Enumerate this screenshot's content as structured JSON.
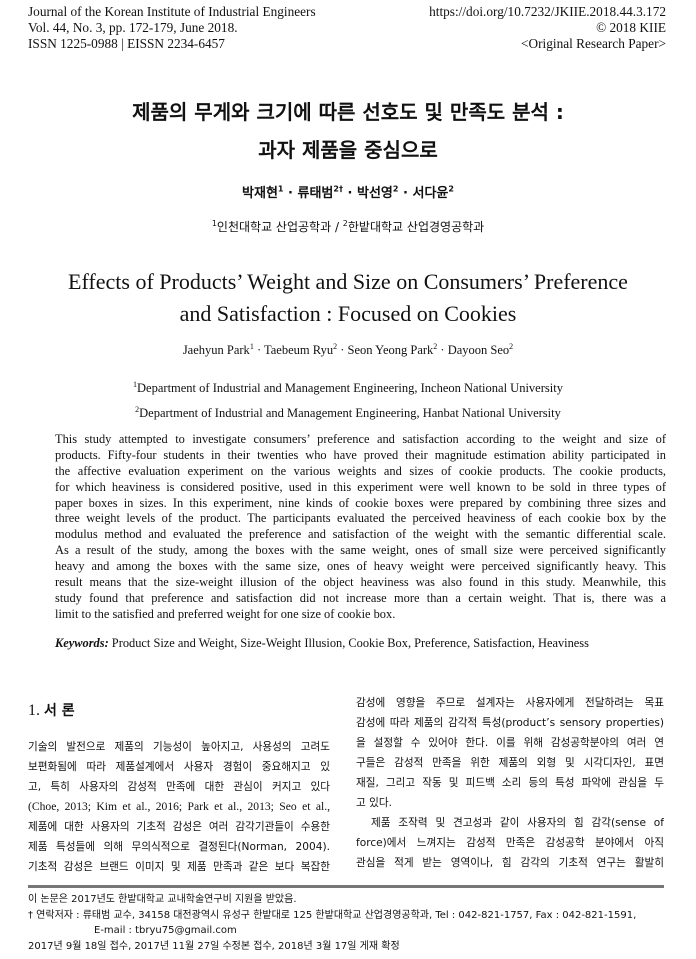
{
  "header": {
    "left": [
      "Journal of the Korean Institute of Industrial Engineers",
      "Vol. 44, No. 3, pp. 172-179, June 2018.",
      "ISSN 1225-0988 | EISSN 2234-6457"
    ],
    "right": [
      "https://doi.org/10.7232/JKIIE.2018.44.3.172",
      "© 2018 KIIE",
      "<Original Research Paper>"
    ]
  },
  "korean": {
    "title": [
      "제품의 무게와 크기에 따른 선호도 및 만족도 분석 :",
      "과자 제품을 중심으로"
    ],
    "authors": [
      {
        "name": "박재현",
        "sup": "1"
      },
      {
        "name": "류태범",
        "sup": "2†"
      },
      {
        "name": "박선영",
        "sup": "2"
      },
      {
        "name": "서다윤",
        "sup": "2"
      }
    ],
    "separator": "·",
    "affiliations": [
      {
        "sup": "1",
        "text": "인천대학교 산업공학과"
      },
      {
        "sup": "2",
        "text": "한밭대학교 산업경영공학과"
      }
    ],
    "aff_sep": " / "
  },
  "english": {
    "title": [
      "Effects of Products’ Weight and Size on Consumers’ Preference",
      "and Satisfaction : Focused on Cookies"
    ],
    "authors": [
      {
        "name": "Jaehyun Park",
        "sup": "1"
      },
      {
        "name": "Taebeum Ryu",
        "sup": "2"
      },
      {
        "name": "Seon Yeong Park",
        "sup": "2"
      },
      {
        "name": "Dayoon Seo",
        "sup": "2"
      }
    ],
    "affiliations": [
      {
        "sup": "1",
        "text": "Department of Industrial and Management Engineering, Incheon National University"
      },
      {
        "sup": "2",
        "text": "Department of Industrial and Management Engineering, Hanbat National University"
      }
    ]
  },
  "abstract": [
    "This study attempted to investigate consumers’ preference and satisfaction according to the weight and size of",
    "products. Fifty-four students in their twenties who have proved their magnitude estimation ability participated in",
    "the affective evaluation experiment on the various weights and sizes of cookie products. The cookie products,",
    "for which heaviness is considered positive, used in this experiment were well known to be sold in three types of",
    "paper boxes in sizes. In this experiment, nine kinds of cookie boxes were prepared by combining three sizes and",
    "three weight levels of the product. The participants evaluated the perceived heaviness of each cookie box by the",
    "modulus method and evaluated the preference and satisfaction of the weight with the semantic differential scale.",
    "As a result of the study, among the boxes with the same weight, ones of small size were perceived significantly",
    "heavy and among the boxes with the same size, ones of heavy weight were perceived significantly heavy. This",
    "result means that the size-weight illusion of the object heaviness was also found in this study. Meanwhile, this",
    "study found that preference and satisfaction did not increase more than a certain weight. That is, there was a",
    "limit to the satisfied and preferred weight for one size of cookie box."
  ],
  "keywords": {
    "label": "Keywords:",
    "text": " Product Size and Weight, Size-Weight Illusion, Cookie Box, Preference, Satisfaction, Heaviness"
  },
  "section": {
    "number": "1.",
    "title": "서 론"
  },
  "left_col": [
    "기술의 발전으로 제품의 기능성이 높아지고, 사용성의 고려도",
    "보편화됨에 따라 제품설계에서 사용자 경험이 중요해지고 있",
    "고, 특히 사용자의 감성적 만족에 대한 관심이 커지고 있다",
    "(Choe, 2013; Kim et al., 2016; Park et al., 2013; Seo et al., 2017).",
    "제품에 대한 사용자의 기초적 감성은 여러 감각기관들이 수용한",
    "제품 특성들에 의해 무의식적으로 결정된다(Norman, 2004).",
    "기초적 감성은 브랜드 이미지 및 제품 만족과 같은 보다 복잡한"
  ],
  "right_col": [
    "감성에 영향을 주므로 설계자는 사용자에게 전달하려는 목표",
    "감성에 따라 제품의 감각적 특성(product’s sensory properties)",
    "을 설정할 수 있어야 한다. 이를 위해 감성공학분야의 여러 연",
    "구들은 감성적 만족을 위한 제품의 외형 및 시각디자인, 표면",
    "재질, 그리고 작동 및 피드백 소리 등의 특성 파악에 관심을 두",
    "고 있다.",
    "　제품 조작력 및 견고성과 같이 사용자의 힘 감각(sense of",
    "force)에서 느껴지는 감성적 만족은 감성공학 분야에서 아직",
    "관심을 적게 받는 영역이나, 힘 감각의 기초적 연구는 활발히"
  ],
  "footnotes": {
    "funding": "이 논문은 2017년도 한밭대학교 교내학술연구비 지원을 받았음.",
    "contact_mark": "†",
    "contact": " 연락저자 : 류태범 교수, 34158 대전광역시 유성구 한밭대로 125 한밭대학교 산업경영공학과, Tel : 042-821-1757, Fax : 042-821-1591,",
    "email": "E-mail : tbryu75@gmail.com",
    "dates": "2017년 9월 18일 접수, 2017년 11월 27일 수정본 접수, 2018년 3월 17일 게재 확정"
  }
}
